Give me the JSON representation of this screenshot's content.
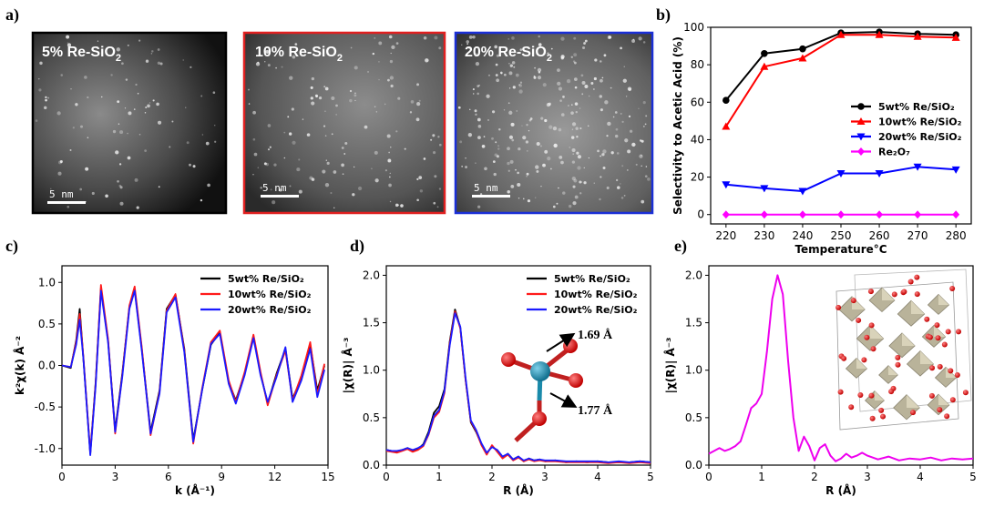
{
  "panel_labels": {
    "a": "a)",
    "b": "b)",
    "c": "c)",
    "d": "d)",
    "e": "e)"
  },
  "micrographs": [
    {
      "title": "5% Re-SiO",
      "subscript": "2",
      "scale_bar": "5 nm",
      "border_color": "#000000"
    },
    {
      "title": "10% Re-SiO",
      "subscript": "2",
      "scale_bar": "5 nm",
      "border_color": "#e02020"
    },
    {
      "title": "20% Re-SiO",
      "subscript": "2",
      "scale_bar": "5 nm",
      "border_color": "#1a2fd6"
    }
  ],
  "structure_d": {
    "bond_top": "1.69 Å",
    "bond_bottom": "1.77 Å"
  },
  "chart_data": [
    {
      "panel": "b",
      "type": "line",
      "xlabel": "Temperature°C",
      "ylabel": "Selectivity to Acetic Acid (%)",
      "xlim": [
        216,
        284
      ],
      "ylim": [
        -5,
        100
      ],
      "xticks": [
        "220",
        "230",
        "240",
        "250",
        "260",
        "270",
        "280"
      ],
      "yticks": [
        "0",
        "20",
        "40",
        "60",
        "80",
        "100"
      ],
      "x": [
        220,
        230,
        240,
        250,
        260,
        270,
        280
      ],
      "legend_position": "right",
      "series": [
        {
          "name": "5wt% Re/SiO₂",
          "color": "#000000",
          "marker": "circle",
          "values": [
            61,
            86,
            88.5,
            97,
            97.5,
            96.5,
            96
          ]
        },
        {
          "name": "10wt% Re/SiO₂",
          "color": "#ff0000",
          "marker": "triangle-up",
          "values": [
            47,
            79,
            83.5,
            96,
            96,
            95,
            94.5
          ]
        },
        {
          "name": "20wt% Re/SiO₂",
          "color": "#0000ff",
          "marker": "triangle-down",
          "values": [
            16,
            14,
            12.5,
            22,
            22,
            25.5,
            24
          ]
        },
        {
          "name": "Re₂O₇",
          "color": "#ff00ff",
          "marker": "diamond",
          "values": [
            0,
            0,
            0,
            0,
            0,
            0,
            0
          ]
        }
      ]
    },
    {
      "panel": "c",
      "type": "line",
      "xlabel": "k (Å⁻¹)",
      "ylabel": "k²χ(k)  Å⁻²",
      "xlim": [
        0,
        15
      ],
      "ylim": [
        -1.2,
        1.2
      ],
      "xticks": [
        "0",
        "3",
        "6",
        "9",
        "12",
        "15"
      ],
      "yticks": [
        "-1.0",
        "-0.5",
        "0.0",
        "0.5",
        "1.0"
      ],
      "legend_position": "top-right",
      "series": [
        {
          "name": "5wt% Re/SiO₂",
          "color": "#000000",
          "x": [
            0,
            0.5,
            0.8,
            1.0,
            1.2,
            1.6,
            1.9,
            2.2,
            2.6,
            3.0,
            3.4,
            3.8,
            4.1,
            4.5,
            5.0,
            5.5,
            5.9,
            6.4,
            6.9,
            7.4,
            7.9,
            8.4,
            8.9,
            9.4,
            9.8,
            10.3,
            10.8,
            11.2,
            11.6,
            12.1,
            12.6,
            13.0,
            13.5,
            14.0,
            14.4,
            14.8
          ],
          "values": [
            0,
            -0.03,
            0.3,
            0.68,
            0.1,
            -1.06,
            -0.2,
            0.93,
            0.3,
            -0.78,
            -0.1,
            0.7,
            0.92,
            0.2,
            -0.8,
            -0.3,
            0.68,
            0.85,
            0.2,
            -0.9,
            -0.3,
            0.25,
            0.4,
            -0.2,
            -0.42,
            -0.1,
            0.35,
            -0.1,
            -0.46,
            -0.1,
            0.2,
            -0.4,
            -0.15,
            0.25,
            -0.3,
            0.0
          ]
        },
        {
          "name": "10wt% Re/SiO₂",
          "color": "#ff1a1a",
          "x": [
            0,
            0.5,
            0.8,
            1.0,
            1.2,
            1.6,
            1.9,
            2.2,
            2.6,
            3.0,
            3.4,
            3.8,
            4.1,
            4.5,
            5.0,
            5.5,
            5.9,
            6.4,
            6.9,
            7.4,
            7.9,
            8.4,
            8.9,
            9.4,
            9.8,
            10.3,
            10.8,
            11.2,
            11.6,
            12.1,
            12.6,
            13.0,
            13.5,
            14.0,
            14.4,
            14.8
          ],
          "values": [
            0,
            -0.02,
            0.28,
            0.62,
            0.12,
            -1.05,
            -0.22,
            0.97,
            0.32,
            -0.82,
            -0.12,
            0.72,
            0.95,
            0.22,
            -0.84,
            -0.32,
            0.66,
            0.86,
            0.18,
            -0.94,
            -0.28,
            0.28,
            0.42,
            -0.18,
            -0.44,
            -0.08,
            0.37,
            -0.08,
            -0.48,
            -0.12,
            0.18,
            -0.42,
            -0.12,
            0.28,
            -0.35,
            0.02
          ]
        },
        {
          "name": "20wt% Re/SiO₂",
          "color": "#1a1aff",
          "x": [
            0,
            0.5,
            0.8,
            1.0,
            1.2,
            1.6,
            1.9,
            2.2,
            2.6,
            3.0,
            3.4,
            3.8,
            4.1,
            4.5,
            5.0,
            5.5,
            5.9,
            6.4,
            6.9,
            7.4,
            7.9,
            8.4,
            8.9,
            9.4,
            9.8,
            10.3,
            10.8,
            11.2,
            11.6,
            12.1,
            12.6,
            13.0,
            13.5,
            14.0,
            14.4,
            14.8
          ],
          "values": [
            0,
            -0.02,
            0.25,
            0.55,
            0.1,
            -1.08,
            -0.24,
            0.9,
            0.28,
            -0.8,
            -0.14,
            0.68,
            0.9,
            0.18,
            -0.82,
            -0.34,
            0.64,
            0.82,
            0.16,
            -0.92,
            -0.3,
            0.26,
            0.38,
            -0.22,
            -0.46,
            -0.12,
            0.33,
            -0.12,
            -0.44,
            -0.14,
            0.22,
            -0.44,
            -0.18,
            0.2,
            -0.38,
            -0.05
          ]
        }
      ]
    },
    {
      "panel": "d",
      "type": "line",
      "xlabel": "R (Å)",
      "ylabel": "|χ(R)| Å⁻³",
      "xlim": [
        0,
        5
      ],
      "ylim": [
        0,
        2.1
      ],
      "xticks": [
        "0",
        "1",
        "2",
        "3",
        "4",
        "5"
      ],
      "yticks": [
        "0.0",
        "0.5",
        "1.0",
        "1.5",
        "2.0"
      ],
      "legend_position": "top-right",
      "series": [
        {
          "name": "5wt% Re/SiO₂",
          "color": "#000000",
          "x": [
            0,
            0.1,
            0.2,
            0.3,
            0.4,
            0.5,
            0.6,
            0.7,
            0.8,
            0.9,
            1.0,
            1.1,
            1.2,
            1.3,
            1.4,
            1.5,
            1.6,
            1.7,
            1.8,
            1.9,
            2.0,
            2.1,
            2.2,
            2.3,
            2.4,
            2.5,
            2.6,
            2.7,
            2.8,
            2.9,
            3.0,
            3.2,
            3.4,
            3.6,
            3.8,
            4.0,
            4.2,
            4.4,
            4.6,
            4.8,
            5.0
          ],
          "values": [
            0.16,
            0.15,
            0.14,
            0.16,
            0.18,
            0.15,
            0.17,
            0.22,
            0.35,
            0.55,
            0.62,
            0.8,
            1.3,
            1.64,
            1.45,
            0.9,
            0.45,
            0.35,
            0.22,
            0.12,
            0.2,
            0.15,
            0.08,
            0.12,
            0.06,
            0.09,
            0.04,
            0.07,
            0.05,
            0.06,
            0.04,
            0.05,
            0.03,
            0.04,
            0.03,
            0.04,
            0.03,
            0.03,
            0.03,
            0.04,
            0.03
          ]
        },
        {
          "name": "10wt% Re/SiO₂",
          "color": "#ff1a1a",
          "x": [
            0,
            0.1,
            0.2,
            0.3,
            0.4,
            0.5,
            0.6,
            0.7,
            0.8,
            0.9,
            1.0,
            1.1,
            1.2,
            1.3,
            1.4,
            1.5,
            1.6,
            1.7,
            1.8,
            1.9,
            2.0,
            2.1,
            2.2,
            2.3,
            2.4,
            2.5,
            2.6,
            2.7,
            2.8,
            2.9,
            3.0,
            3.2,
            3.4,
            3.6,
            3.8,
            4.0,
            4.2,
            4.4,
            4.6,
            4.8,
            5.0
          ],
          "values": [
            0.15,
            0.14,
            0.13,
            0.15,
            0.17,
            0.14,
            0.16,
            0.2,
            0.32,
            0.5,
            0.56,
            0.76,
            1.28,
            1.62,
            1.44,
            0.9,
            0.46,
            0.36,
            0.21,
            0.11,
            0.21,
            0.14,
            0.07,
            0.11,
            0.05,
            0.08,
            0.04,
            0.06,
            0.04,
            0.05,
            0.04,
            0.04,
            0.03,
            0.03,
            0.03,
            0.03,
            0.02,
            0.03,
            0.02,
            0.03,
            0.02
          ]
        },
        {
          "name": "20wt% Re/SiO₂",
          "color": "#1a1aff",
          "x": [
            0,
            0.1,
            0.2,
            0.3,
            0.4,
            0.5,
            0.6,
            0.7,
            0.8,
            0.9,
            1.0,
            1.1,
            1.2,
            1.3,
            1.4,
            1.5,
            1.6,
            1.7,
            1.8,
            1.9,
            2.0,
            2.1,
            2.2,
            2.3,
            2.4,
            2.5,
            2.6,
            2.7,
            2.8,
            2.9,
            3.0,
            3.2,
            3.4,
            3.6,
            3.8,
            4.0,
            4.2,
            4.4,
            4.6,
            4.8,
            5.0
          ],
          "values": [
            0.16,
            0.15,
            0.15,
            0.16,
            0.18,
            0.16,
            0.18,
            0.21,
            0.33,
            0.52,
            0.58,
            0.78,
            1.26,
            1.6,
            1.46,
            0.92,
            0.47,
            0.37,
            0.23,
            0.13,
            0.19,
            0.16,
            0.09,
            0.12,
            0.06,
            0.09,
            0.05,
            0.07,
            0.05,
            0.06,
            0.05,
            0.05,
            0.04,
            0.04,
            0.04,
            0.04,
            0.03,
            0.04,
            0.03,
            0.04,
            0.03
          ]
        }
      ]
    },
    {
      "panel": "e",
      "type": "line",
      "xlabel": "R (Å)",
      "ylabel": "|χ(R)| Å⁻³",
      "xlim": [
        0,
        5
      ],
      "ylim": [
        0,
        2.1
      ],
      "xticks": [
        "0",
        "1",
        "2",
        "3",
        "4",
        "5"
      ],
      "yticks": [
        "0.0",
        "0.5",
        "1.0",
        "1.5",
        "2.0"
      ],
      "series": [
        {
          "name": "Re₂O₇",
          "color": "#ee00ee",
          "x": [
            0,
            0.1,
            0.2,
            0.3,
            0.4,
            0.5,
            0.6,
            0.7,
            0.8,
            0.9,
            1.0,
            1.1,
            1.2,
            1.3,
            1.4,
            1.5,
            1.6,
            1.7,
            1.8,
            1.9,
            2.0,
            2.1,
            2.2,
            2.3,
            2.4,
            2.5,
            2.6,
            2.7,
            2.8,
            2.9,
            3.0,
            3.2,
            3.4,
            3.6,
            3.8,
            4.0,
            4.2,
            4.4,
            4.6,
            4.8,
            5.0
          ],
          "values": [
            0.12,
            0.15,
            0.18,
            0.15,
            0.17,
            0.2,
            0.25,
            0.42,
            0.6,
            0.65,
            0.75,
            1.2,
            1.75,
            2.0,
            1.8,
            1.1,
            0.5,
            0.15,
            0.3,
            0.2,
            0.05,
            0.18,
            0.22,
            0.1,
            0.04,
            0.07,
            0.12,
            0.08,
            0.1,
            0.13,
            0.1,
            0.06,
            0.09,
            0.05,
            0.07,
            0.06,
            0.08,
            0.05,
            0.07,
            0.06,
            0.07
          ]
        }
      ]
    }
  ]
}
